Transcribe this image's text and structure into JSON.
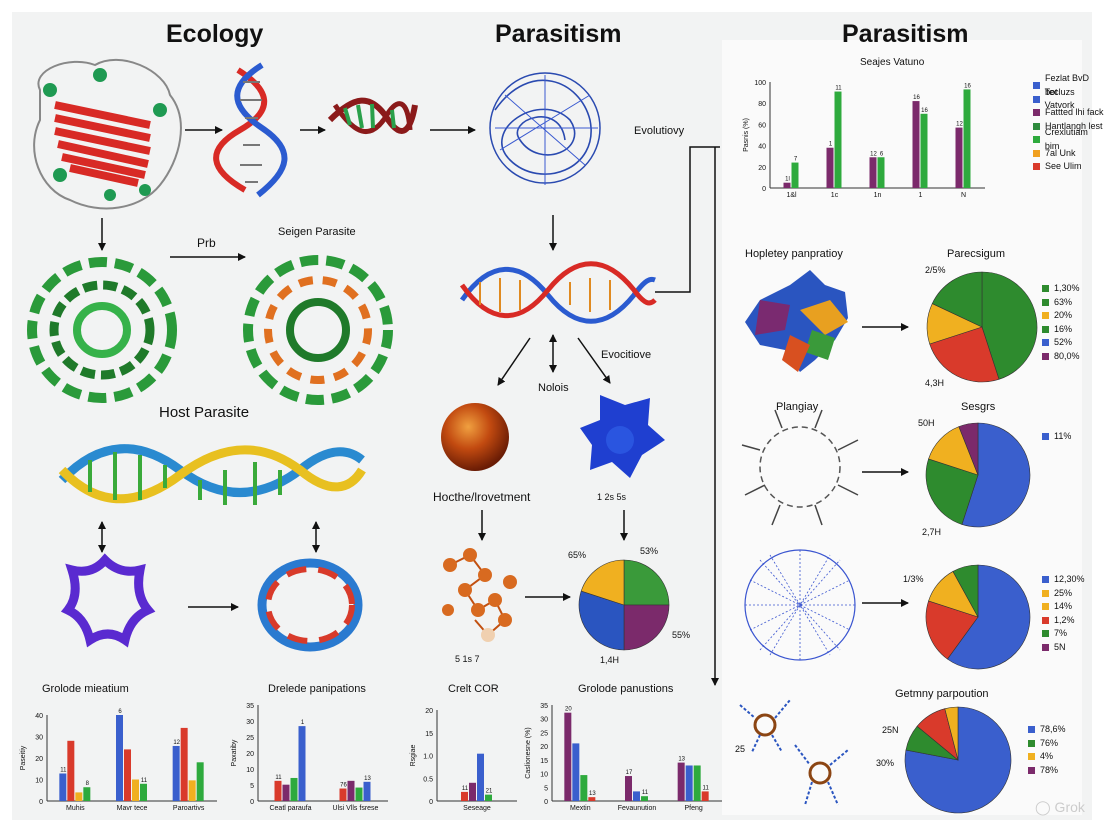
{
  "titles": {
    "left": "Ecology",
    "middle": "Parasitism",
    "right": "Parasitism"
  },
  "labels": {
    "prb": "Prb",
    "seigen": "Seigen Parasite",
    "host_parasite": "Host Parasite",
    "evolutiovy": "Evolutiovy",
    "evocitiove": "Evocitiove",
    "nolois": "Nolois",
    "hocthe": "Hocthe/lrovetment",
    "cluster_nums": "1   2s   5s",
    "small_bottom": "5   1s   7",
    "pie_mid_tl": "65%",
    "pie_mid_tr": "53%",
    "pie_mid_r": "55%",
    "pie_mid_b": "1,4H",
    "hopletey": "Hopletey panpratioy",
    "plangiay": "Plangiay",
    "pie1_tl": "2/5%",
    "pie1_bl": "4,3H",
    "pie2_tl": "50H",
    "pie2_bl": "2,7H",
    "pie3_tl": "1/3%",
    "left_25": "25",
    "left_30": "30%",
    "pie4_tl": "25N"
  },
  "charts": {
    "top_right": {
      "title": "Seajes Vatuno",
      "ylabel": "Pasnis (%)",
      "yticks": [
        "100",
        "80",
        "60",
        "40",
        "20",
        "0"
      ],
      "categories": [
        "1&l",
        "1c",
        "1n",
        "1",
        "N"
      ],
      "bar_labels": [
        "1l",
        "7",
        "1",
        "11",
        "12",
        "6",
        "16",
        "16",
        "12",
        "16"
      ],
      "legend": [
        "Fezlat BvD bot",
        "Tecluzs Vatvork",
        "Fattted lhi fack",
        "Hantlangh lest",
        "Crexlutiam bim",
        "7al Unk",
        "See Ulim"
      ],
      "legend_colors": [
        "#3a5fcd",
        "#3a5fcd",
        "#7b2a6b",
        "#2e8b3d",
        "#2eaa3d",
        "#f0a020",
        "#d93a2b"
      ]
    },
    "pie_right_1": {
      "title": "Parecsigum",
      "legend": [
        "1,30%",
        "63%",
        "20%",
        "16%",
        "52%",
        "80,0%"
      ],
      "legend_colors": [
        "#2e8b2e",
        "#2e8b2e",
        "#f0b020",
        "#2e8b2e",
        "#3a5fcd",
        "#7b2a6b"
      ]
    },
    "pie_right_2": {
      "title": "Sesgrs",
      "legend": [
        "11%"
      ],
      "legend_colors": [
        "#3a5fcd"
      ]
    },
    "pie_right_3": {
      "legend": [
        "12,30%",
        "25%",
        "14%",
        "1,2%",
        "7%",
        "5N"
      ],
      "legend_colors": [
        "#3a5fcd",
        "#f0b020",
        "#f0b020",
        "#d93a2b",
        "#2e8b2e",
        "#7b2a6b"
      ]
    },
    "pie_right_4": {
      "title": "Getmny parpoution",
      "legend": [
        "78,6%",
        "76%",
        "4%",
        "78%"
      ],
      "legend_colors": [
        "#3a5fcd",
        "#2e8b2e",
        "#f0b020",
        "#7b2a6b"
      ]
    },
    "bottom_1": {
      "title": "Grolode mieatium",
      "ylabel": "Paseitiy",
      "yticks": [
        "40",
        "30",
        "20",
        "10",
        "0"
      ],
      "categories": [
        "Muhis",
        "Mavr tece",
        "Paroartivs"
      ],
      "bar_labels": [
        "11",
        "8",
        "6",
        "11",
        "12"
      ]
    },
    "bottom_2": {
      "title": "Drelede panipations",
      "ylabel": "Paxatiby",
      "yticks": [
        "35",
        "30",
        "25",
        "20",
        "10",
        "5",
        "0"
      ],
      "categories": [
        "Ceatl paraufa",
        "Ulsi Vlls fsrese"
      ],
      "bar_labels": [
        "11",
        "1",
        "76",
        "13",
        "13"
      ]
    },
    "bottom_3": {
      "title": "Crelt COR",
      "ylabel": "Rsgiae",
      "yticks": [
        "20",
        "15",
        "1.0",
        "0.5",
        "0"
      ],
      "categories": [
        "Seseage"
      ],
      "bar_labels": [
        "11",
        "21",
        "11"
      ]
    },
    "bottom_4": {
      "title": "Grolode panustions",
      "ylabel": "Caslionesne (%)",
      "yticks": [
        "35",
        "30",
        "25",
        "20",
        "15",
        "10",
        "5",
        "0"
      ],
      "categories": [
        "Mextin",
        "Fevaunution",
        "Pfeng"
      ],
      "bar_labels": [
        "20",
        "13",
        "17",
        "11",
        "13",
        "11",
        "14"
      ]
    }
  }
}
